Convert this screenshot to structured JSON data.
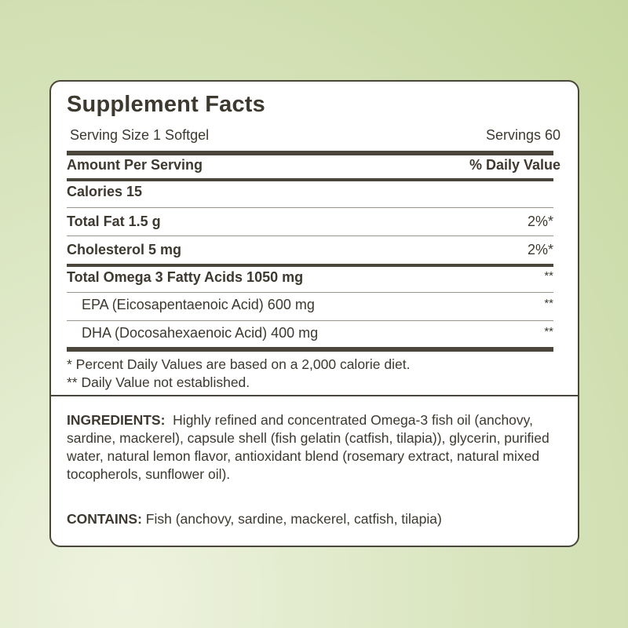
{
  "title": "Supplement Facts",
  "serving_size": "Serving Size 1 Softgel",
  "servings": "Servings 60",
  "header": {
    "amount": "Amount Per Serving",
    "dv": "% Daily Value"
  },
  "rows": [
    {
      "label": "Calories 15",
      "dv": ""
    },
    {
      "label": "Total Fat 1.5 g",
      "dv": "2%*"
    },
    {
      "label": "Cholesterol 5 mg",
      "dv": "2%*"
    },
    {
      "label": "Total Omega 3 Fatty Acids 1050 mg",
      "dv": "**"
    },
    {
      "label": "EPA (Eicosapentaenoic Acid) 600 mg",
      "dv": "**"
    },
    {
      "label": "DHA (Docosahexaenoic Acid) 400 mg",
      "dv": "**"
    }
  ],
  "footnotes": [
    "* Percent Daily Values are based on a 2,000 calorie diet.",
    "** Daily Value not established."
  ],
  "ingredients": {
    "label": "INGREDIENTS:",
    "text": "Highly refined and concentrated Omega-3 fish oil (anchovy, sardine, mackerel), capsule shell (fish gelatin (catfish, tilapia)), glycerin, purified water, natural lemon flavor, antioxidant blend (rosemary extract, natural mixed tocopherols, sunflower oil)."
  },
  "contains": {
    "label": "CONTAINS:",
    "text": "Fish (anchovy, sardine, mackerel, catfish, tilapia)"
  }
}
